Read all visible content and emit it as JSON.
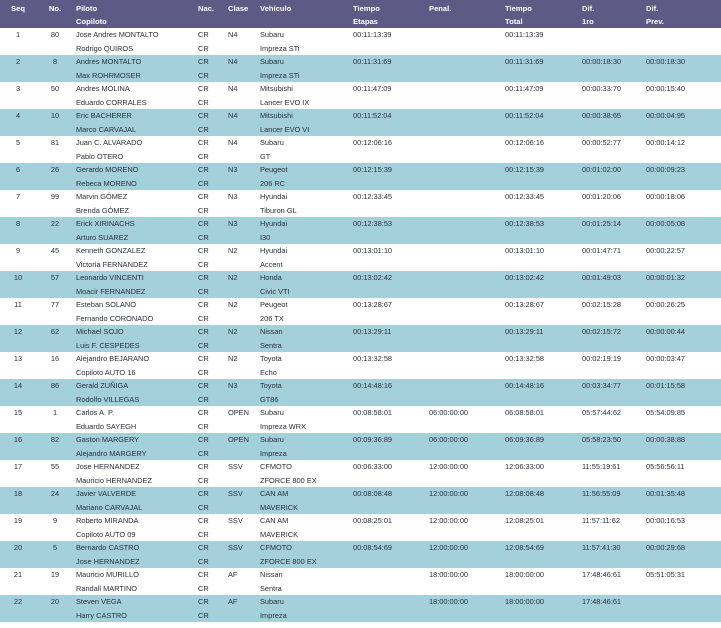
{
  "header": {
    "seq": "Seq",
    "no": "No.",
    "piloto": "Piloto",
    "copiloto": "Copiloto",
    "nac": "Nac.",
    "clase": "Clase",
    "vehiculo": "Vehículo",
    "tiempo_etapas_1": "Tiempo",
    "tiempo_etapas_2": "Etapas",
    "penal": "Penal.",
    "tiempo_total_1": "Tiempo",
    "tiempo_total_2": "Total",
    "dif1ro_1": "Dif.",
    "dif1ro_2": "1ro",
    "difprev_1": "Dif.",
    "difprev_2": "Prev."
  },
  "rows": [
    {
      "seq": "1",
      "no": "80",
      "piloto": "Jose Andres MONTALTO",
      "copiloto": "Rodrigo QUIROS",
      "nac1": "CR",
      "nac2": "CR",
      "clase": "N4",
      "veh1": "Subaru",
      "veh2": "Impreza STi",
      "etapas": "00:11:13:39",
      "penal": "",
      "total": "00:11:13:39",
      "dif1ro": "",
      "difprev": ""
    },
    {
      "seq": "2",
      "no": "8",
      "piloto": "Andres MONTALTO",
      "copiloto": "Max ROHRMOSER",
      "nac1": "CR",
      "nac2": "CR",
      "clase": "N4",
      "veh1": "Subaru",
      "veh2": "Impreza STi",
      "etapas": "00:11:31:69",
      "penal": "",
      "total": "00:11:31:69",
      "dif1ro": "00:00:18:30",
      "difprev": "00:00:18:30"
    },
    {
      "seq": "3",
      "no": "50",
      "piloto": "Andres MOLINA",
      "copiloto": "Eduardo CORRALES",
      "nac1": "CR",
      "nac2": "CR",
      "clase": "N4",
      "veh1": "Mitsubishi",
      "veh2": "Lancer EVO IX",
      "etapas": "00:11:47:09",
      "penal": "",
      "total": "00:11:47:09",
      "dif1ro": "00:00:33:70",
      "difprev": "00:00:15:40"
    },
    {
      "seq": "4",
      "no": "10",
      "piloto": "Eric BACHERER",
      "copiloto": "Marco CARVAJAL",
      "nac1": "CR",
      "nac2": "CR",
      "clase": "N4",
      "veh1": "Mitsubishi",
      "veh2": "Lancer EVO VI",
      "etapas": "00:11:52:04",
      "penal": "",
      "total": "00:11:52:04",
      "dif1ro": "00:00:38:65",
      "difprev": "00:00:04:95"
    },
    {
      "seq": "5",
      "no": "81",
      "piloto": "Juan C. ALVARADO",
      "copiloto": "Pablo OTERO",
      "nac1": "CR",
      "nac2": "CR",
      "clase": "N4",
      "veh1": "Subaru",
      "veh2": "GT",
      "etapas": "00:12:06:16",
      "penal": "",
      "total": "00:12:06:16",
      "dif1ro": "00:00:52:77",
      "difprev": "00:00:14:12"
    },
    {
      "seq": "6",
      "no": "26",
      "piloto": "Gerardo MORENO",
      "copiloto": "Rebeca MORENO",
      "nac1": "CR",
      "nac2": "CR",
      "clase": "N3",
      "veh1": "Peugeot",
      "veh2": "206 RC",
      "etapas": "00:12:15:39",
      "penal": "",
      "total": "00:12:15:39",
      "dif1ro": "00:01:02:00",
      "difprev": "00:00:09:23"
    },
    {
      "seq": "7",
      "no": "99",
      "piloto": "Marvin GÓMEZ",
      "copiloto": "Brenda GÓMEZ",
      "nac1": "CR",
      "nac2": "CR",
      "clase": "N3",
      "veh1": "Hyundai",
      "veh2": "Tiburon GL",
      "etapas": "00:12:33:45",
      "penal": "",
      "total": "00:12:33:45",
      "dif1ro": "00:01:20:06",
      "difprev": "00:00:18:06"
    },
    {
      "seq": "8",
      "no": "22",
      "piloto": "Erick XIRINACHS",
      "copiloto": "Arturo SUAREZ",
      "nac1": "CR",
      "nac2": "CR",
      "clase": "N3",
      "veh1": "Hyundai",
      "veh2": "I30",
      "etapas": "00:12:38:53",
      "penal": "",
      "total": "00:12:38:53",
      "dif1ro": "00:01:25:14",
      "difprev": "00:00:05:08"
    },
    {
      "seq": "9",
      "no": "45",
      "piloto": "Kenneth GONZALEZ",
      "copiloto": "Victoria FERNANDEZ",
      "nac1": "CR",
      "nac2": "CR",
      "clase": "N2",
      "veh1": "Hyundai",
      "veh2": "Accent",
      "etapas": "00:13:01:10",
      "penal": "",
      "total": "00:13:01:10",
      "dif1ro": "00:01:47:71",
      "difprev": "00:00:22:57"
    },
    {
      "seq": "10",
      "no": "57",
      "piloto": "Leonardo VINCENTI",
      "copiloto": "Moacir FERNANDEZ",
      "nac1": "CR",
      "nac2": "CR",
      "clase": "N2",
      "veh1": "Honda",
      "veh2": "Civic VTI",
      "etapas": "00:13:02:42",
      "penal": "",
      "total": "00:13:02:42",
      "dif1ro": "00:01:49:03",
      "difprev": "00:00:01:32"
    },
    {
      "seq": "11",
      "no": "77",
      "piloto": "Esteban SOLANO",
      "copiloto": "Fernando CORONADO",
      "nac1": "CR",
      "nac2": "CR",
      "clase": "N2",
      "veh1": "Peugeot",
      "veh2": "206 TX",
      "etapas": "00:13:28:67",
      "penal": "",
      "total": "00:13:28:67",
      "dif1ro": "00:02:15:28",
      "difprev": "00:00:26:25"
    },
    {
      "seq": "12",
      "no": "62",
      "piloto": "Michael SOJO",
      "copiloto": "Luis F. CESPEDES",
      "nac1": "CR",
      "nac2": "CR",
      "clase": "N2",
      "veh1": "Nissan",
      "veh2": "Sentra",
      "etapas": "00:13:29:11",
      "penal": "",
      "total": "00:13:29:11",
      "dif1ro": "00:02:15:72",
      "difprev": "00:00:00:44"
    },
    {
      "seq": "13",
      "no": "16",
      "piloto": "Alejandro BEJARANO",
      "copiloto": "Copiloto AUTO 16",
      "nac1": "CR",
      "nac2": "CR",
      "clase": "N2",
      "veh1": "Toyota",
      "veh2": "Echo",
      "etapas": "00:13:32:58",
      "penal": "",
      "total": "00:13:32:58",
      "dif1ro": "00:02:19:19",
      "difprev": "00:00:03:47"
    },
    {
      "seq": "14",
      "no": "86",
      "piloto": "Gerald ZUÑIGA",
      "copiloto": "Rodolfo VILLEGAS",
      "nac1": "CR",
      "nac2": "CR",
      "clase": "N3",
      "veh1": "Toyota",
      "veh2": "GT86",
      "etapas": "00:14:48:16",
      "penal": "",
      "total": "00:14:48:16",
      "dif1ro": "00:03:34:77",
      "difprev": "00:01:15:58"
    },
    {
      "seq": "15",
      "no": "1",
      "piloto": "Carlos A. P.",
      "copiloto": "Eduardo SAYEGH",
      "nac1": "CR",
      "nac2": "CR",
      "clase": "OPEN",
      "veh1": "Subaru",
      "veh2": "Impreza WRX",
      "etapas": "00:08:58:01",
      "penal": "06:00:00:00",
      "total": "06:08:58:01",
      "dif1ro": "05:57:44:62",
      "difprev": "05:54:09:85"
    },
    {
      "seq": "16",
      "no": "82",
      "piloto": "Gaston MARGERY",
      "copiloto": "Alejandro MARGERY",
      "nac1": "CR",
      "nac2": "CR",
      "clase": "OPEN",
      "veh1": "Subaru",
      "veh2": "Impreza",
      "etapas": "00:09:36:89",
      "penal": "06:00:00:00",
      "total": "06:09:36:89",
      "dif1ro": "05:58:23:50",
      "difprev": "00:00:38:88"
    },
    {
      "seq": "17",
      "no": "55",
      "piloto": "Jose HERNANDEZ",
      "copiloto": "Mauricio HERNANDEZ",
      "nac1": "CR",
      "nac2": "CR",
      "clase": "SSV",
      "veh1": "CFMOTO",
      "veh2": "ZFORCE 800 EX",
      "etapas": "00:06:33:00",
      "penal": "12:00:00:00",
      "total": "12:06:33:00",
      "dif1ro": "11:55:19:61",
      "difprev": "05:56:56:11"
    },
    {
      "seq": "18",
      "no": "24",
      "piloto": "Javier VALVERDE",
      "copiloto": "Mariano CARVAJAL",
      "nac1": "CR",
      "nac2": "CR",
      "clase": "SSV",
      "veh1": "CAN AM",
      "veh2": "MAVERICK",
      "etapas": "00:08:08:48",
      "penal": "12:00:00:00",
      "total": "12:08:08:48",
      "dif1ro": "11:56:55:09",
      "difprev": "00:01:35:48"
    },
    {
      "seq": "19",
      "no": "9",
      "piloto": "Roberto MIRANDA",
      "copiloto": "Copiloto AUTO 09",
      "nac1": "CR",
      "nac2": "CR",
      "clase": "SSV",
      "veh1": "CAN AM",
      "veh2": "MAVERICK",
      "etapas": "00:08:25:01",
      "penal": "12:00:00:00",
      "total": "12:08:25:01",
      "dif1ro": "11:57:11:62",
      "difprev": "00:00:16:53"
    },
    {
      "seq": "20",
      "no": "5",
      "piloto": "Bernardo CASTRO",
      "copiloto": "Jose HERNANDEZ",
      "nac1": "CR",
      "nac2": "CR",
      "clase": "SSV",
      "veh1": "CFMOTO",
      "veh2": "ZFORCE 800 EX",
      "etapas": "00:08:54:69",
      "penal": "12:00:00:00",
      "total": "12:08:54:69",
      "dif1ro": "11:57:41:30",
      "difprev": "00:00:29:68"
    },
    {
      "seq": "21",
      "no": "19",
      "piloto": "Mauricio MURILLO",
      "copiloto": "Randall MARTINO",
      "nac1": "CR",
      "nac2": "CR",
      "clase": "AF",
      "veh1": "Nissan",
      "veh2": "Sentra",
      "etapas": "",
      "penal": "18:00:00:00",
      "total": "18:00:00:00",
      "dif1ro": "17:48:46:61",
      "difprev": "05:51:05:31"
    },
    {
      "seq": "22",
      "no": "20",
      "piloto": "Steven VEGA",
      "copiloto": "Harry CASTRO",
      "nac1": "CR",
      "nac2": "CR",
      "clase": "AF",
      "veh1": "Subaru",
      "veh2": "Impreza",
      "etapas": "",
      "penal": "18:00:00:00",
      "total": "18:00:00:00",
      "dif1ro": "17:48:46:61",
      "difprev": ""
    }
  ]
}
